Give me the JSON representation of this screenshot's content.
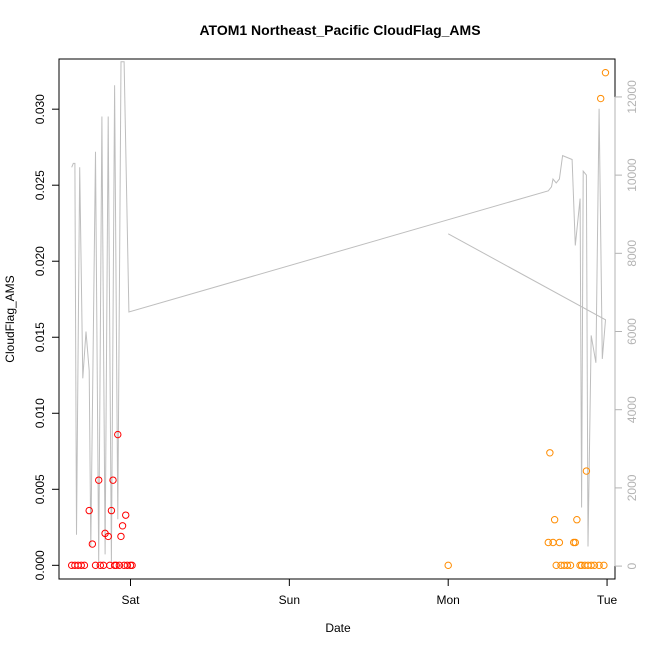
{
  "chart_data": {
    "type": "scatter",
    "title": "ATOM1 Northeast_Pacific CloudFlag_AMS",
    "xlabel": "Date",
    "ylabel": "CloudFlag_AMS",
    "x_ticks": [
      {
        "label": "Sat",
        "day": 1
      },
      {
        "label": "Sun",
        "day": 2
      },
      {
        "label": "Mon",
        "day": 3
      },
      {
        "label": "Tue",
        "day": 4
      }
    ],
    "xlim_days": [
      0.55,
      4.05
    ],
    "ylim": [
      -0.0009,
      0.0333
    ],
    "y_ticks": [
      0.0,
      0.005,
      0.01,
      0.015,
      0.02,
      0.025,
      0.03
    ],
    "y_tick_labels": [
      "0.000",
      "0.005",
      "0.010",
      "0.015",
      "0.020",
      "0.025",
      "0.030"
    ],
    "y2_label": "",
    "y2lim": [
      -330,
      12970
    ],
    "y2_ticks": [
      0,
      2000,
      4000,
      6000,
      8000,
      10000,
      12000
    ],
    "colors": {
      "series_a": "#ff0000",
      "series_b": "#ff8c00",
      "altitude": "#bebebe",
      "axis": "#000000",
      "right_axis": "#b3b3b3"
    },
    "series": [
      {
        "color": "#ff0000",
        "points": [
          [
            0.63,
            0.0
          ],
          [
            0.65,
            0.0
          ],
          [
            0.67,
            0.0
          ],
          [
            0.69,
            0.0
          ],
          [
            0.71,
            0.0
          ],
          [
            0.74,
            0.0036
          ],
          [
            0.76,
            0.0014
          ],
          [
            0.78,
            0.0
          ],
          [
            0.8,
            0.0056
          ],
          [
            0.81,
            0.0
          ],
          [
            0.83,
            0.0
          ],
          [
            0.84,
            0.0021
          ],
          [
            0.86,
            0.0019
          ],
          [
            0.87,
            0.0
          ],
          [
            0.88,
            0.0036
          ],
          [
            0.89,
            0.0056
          ],
          [
            0.9,
            0.0
          ],
          [
            0.91,
            0.0
          ],
          [
            0.92,
            0.0086
          ],
          [
            0.93,
            0.0
          ],
          [
            0.94,
            0.0019
          ],
          [
            0.95,
            0.0026
          ],
          [
            0.96,
            0.0
          ],
          [
            0.97,
            0.0033
          ],
          [
            0.98,
            0.0
          ],
          [
            1.0,
            0.0
          ],
          [
            1.01,
            0.0
          ]
        ]
      },
      {
        "color": "#ff8c00",
        "points": [
          [
            3.0,
            0.0
          ],
          [
            3.63,
            0.0015
          ],
          [
            3.64,
            0.0074
          ],
          [
            3.66,
            0.0015
          ],
          [
            3.67,
            0.003
          ],
          [
            3.68,
            0.0
          ],
          [
            3.7,
            0.0015
          ],
          [
            3.71,
            0.0
          ],
          [
            3.73,
            0.0
          ],
          [
            3.75,
            0.0
          ],
          [
            3.77,
            0.0
          ],
          [
            3.79,
            0.0015
          ],
          [
            3.8,
            0.0015
          ],
          [
            3.81,
            0.003
          ],
          [
            3.83,
            0.0
          ],
          [
            3.84,
            0.0
          ],
          [
            3.86,
            0.0
          ],
          [
            3.87,
            0.0062
          ],
          [
            3.88,
            0.0
          ],
          [
            3.9,
            0.0
          ],
          [
            3.92,
            0.0
          ],
          [
            3.95,
            0.0
          ],
          [
            3.96,
            0.0307
          ],
          [
            3.98,
            0.0
          ],
          [
            3.99,
            0.0324
          ]
        ]
      },
      {
        "axis": "right",
        "color": "#bebebe",
        "points": [
          [
            0.63,
            10200
          ],
          [
            0.64,
            10300
          ],
          [
            0.65,
            10300
          ],
          [
            0.66,
            800
          ],
          [
            0.68,
            10200
          ],
          [
            0.7,
            4800
          ],
          [
            0.72,
            6000
          ],
          [
            0.74,
            5000
          ],
          [
            0.75,
            500
          ],
          [
            0.78,
            10600
          ],
          [
            0.8,
            100
          ],
          [
            0.82,
            11500
          ],
          [
            0.84,
            300
          ],
          [
            0.86,
            11500
          ],
          [
            0.88,
            100
          ],
          [
            0.9,
            12300
          ],
          [
            0.92,
            1200
          ],
          [
            0.94,
            12900
          ],
          [
            0.96,
            12900
          ],
          [
            0.99,
            6500
          ],
          [
            3.63,
            9600
          ],
          [
            3.65,
            9700
          ],
          [
            3.66,
            9900
          ],
          [
            3.68,
            9800
          ],
          [
            3.7,
            9900
          ],
          [
            3.72,
            10500
          ],
          [
            3.78,
            10400
          ],
          [
            3.8,
            8200
          ],
          [
            3.83,
            9400
          ],
          [
            3.84,
            1500
          ],
          [
            3.85,
            10100
          ],
          [
            3.87,
            10000
          ],
          [
            3.88,
            500
          ],
          [
            3.9,
            5900
          ],
          [
            3.93,
            5200
          ],
          [
            3.95,
            11700
          ],
          [
            3.97,
            5300
          ],
          [
            3.99,
            6300
          ],
          [
            3.0,
            8500
          ]
        ]
      }
    ]
  }
}
